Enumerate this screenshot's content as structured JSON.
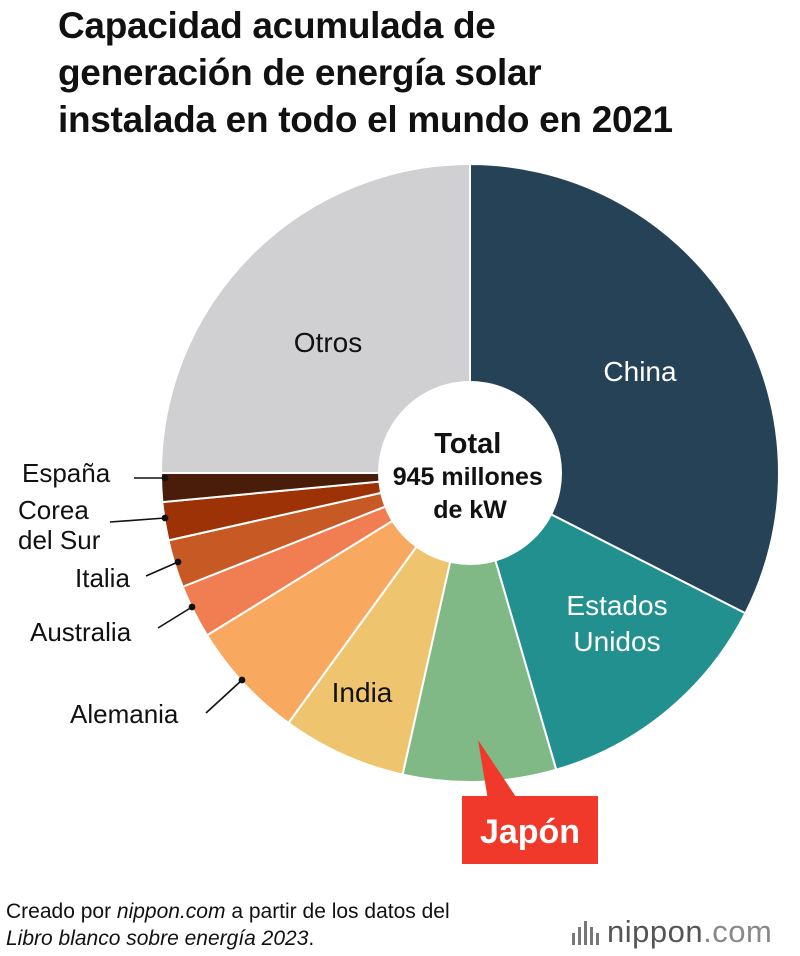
{
  "title_lines": [
    "Capacidad acumulada de",
    "generación de energía solar",
    "instalada en todo el mundo en 2021"
  ],
  "center_label": [
    "Total",
    "945 millones",
    "de kW"
  ],
  "chart_data": {
    "type": "pie",
    "variant": "donut",
    "title": "Capacidad acumulada de generación de energía solar instalada en todo el mundo en 2021",
    "total": "945 millones de kW",
    "start": "top, clockwise",
    "slices": [
      {
        "label": "China",
        "lines": [
          "China"
        ],
        "share": 0.325,
        "color": "#254257",
        "label_color": "#ffffff",
        "callout": false
      },
      {
        "label": "Estados Unidos",
        "lines": [
          "Estados",
          "Unidos"
        ],
        "share": 0.13,
        "color": "#22908f",
        "label_color": "#ffffff",
        "callout": false
      },
      {
        "label": "Japón",
        "lines": [
          "Japón"
        ],
        "share": 0.08,
        "color": "#80b986",
        "label_color": "#ffffff",
        "callout": true,
        "highlight": true,
        "highlight_color": "#f0392b"
      },
      {
        "label": "India",
        "lines": [
          "India"
        ],
        "share": 0.065,
        "color": "#eec56e",
        "label_color": "#111111",
        "callout": false
      },
      {
        "label": "Alemania",
        "lines": [
          "Alemania"
        ],
        "share": 0.062,
        "color": "#f9a85f",
        "label_color": "#111111",
        "callout": true
      },
      {
        "label": "Australia",
        "lines": [
          "Australia"
        ],
        "share": 0.028,
        "color": "#f07e52",
        "label_color": "#111111",
        "callout": true
      },
      {
        "label": "Italia",
        "lines": [
          "Italia"
        ],
        "share": 0.025,
        "color": "#c75a24",
        "label_color": "#111111",
        "callout": true
      },
      {
        "label": "Corea del Sur",
        "lines": [
          "Corea",
          "del Sur"
        ],
        "share": 0.02,
        "color": "#9c3206",
        "label_color": "#111111",
        "callout": true
      },
      {
        "label": "España",
        "lines": [
          "España"
        ],
        "share": 0.015,
        "color": "#4a1c0a",
        "label_color": "#111111",
        "callout": true
      },
      {
        "label": "Otros",
        "lines": [
          "Otros"
        ],
        "share": 0.25,
        "color": "#d0cfd1",
        "label_color": "#111111",
        "callout": false
      }
    ]
  },
  "footer": {
    "prefix": "Creado por ",
    "site": "nippon.com",
    "middle": " a partir de los datos del",
    "source": "Libro blanco sobre energía 2023",
    "suffix": "."
  },
  "logo": {
    "name": "nippon",
    "suffix": ".com"
  }
}
